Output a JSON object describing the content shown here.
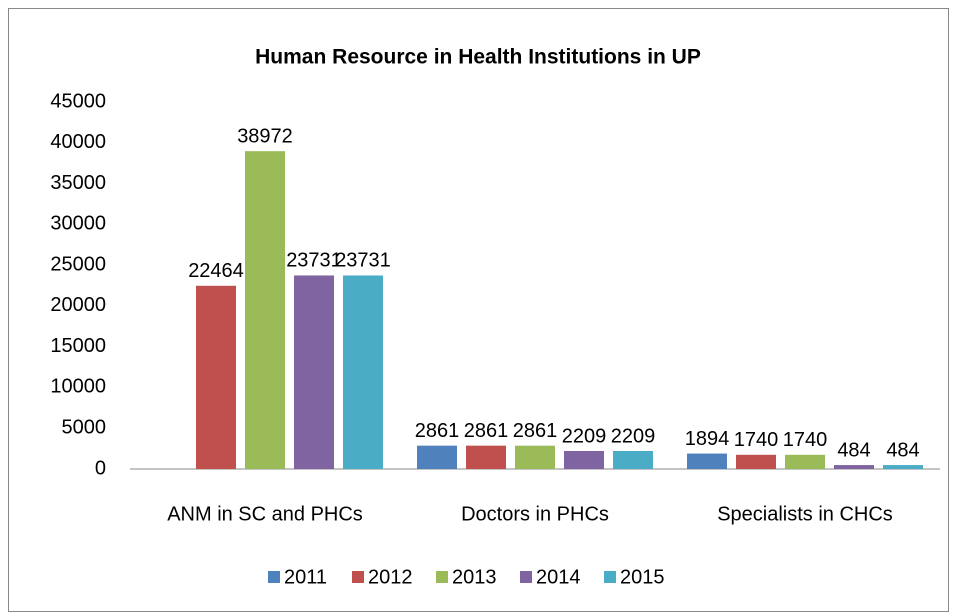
{
  "chart_data": {
    "type": "bar",
    "title": "Human Resource in Health Institutions in UP",
    "categories": [
      "ANM in SC and PHCs",
      "Doctors in PHCs",
      "Specialists in CHCs"
    ],
    "series": [
      {
        "name": "2011",
        "color": "#4f81bd",
        "values": [
          null,
          2861,
          1894
        ]
      },
      {
        "name": "2012",
        "color": "#c0504d",
        "values": [
          22464,
          2861,
          1740
        ]
      },
      {
        "name": "2013",
        "color": "#9bbb59",
        "values": [
          38972,
          2861,
          1740
        ]
      },
      {
        "name": "2014",
        "color": "#8064a2",
        "values": [
          23731,
          2209,
          484
        ]
      },
      {
        "name": "2015",
        "color": "#4bacc6",
        "values": [
          23731,
          2209,
          484
        ]
      }
    ],
    "ylim": [
      0,
      45000
    ],
    "yticks": [
      0,
      5000,
      10000,
      15000,
      20000,
      25000,
      30000,
      35000,
      40000,
      45000
    ],
    "grid": false,
    "legend": "bottom"
  }
}
